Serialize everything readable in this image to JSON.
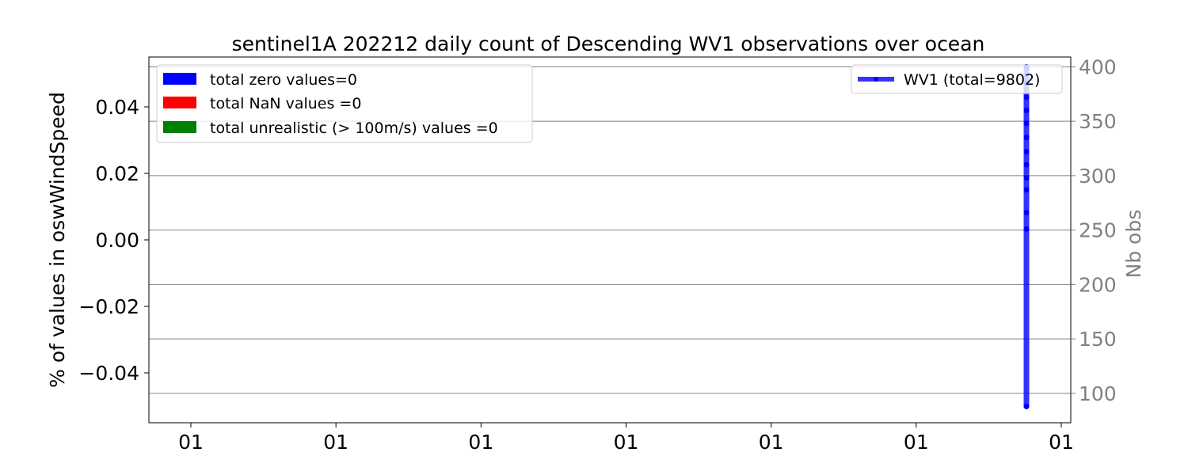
{
  "chart_data": {
    "type": "line",
    "title": "sentinel1A 202212 daily count of Descending WV1 observations over ocean",
    "ylabel_left": "% of values in oswWindSpeed",
    "ylabel_right": "Nb obs",
    "left_axis": {
      "ylim": [
        -0.055,
        0.055
      ],
      "ticks": [
        0.04,
        0.02,
        0.0,
        -0.02,
        -0.04
      ],
      "tick_labels": [
        "0.04",
        "0.02",
        "0.00",
        "−0.02",
        "−0.04"
      ]
    },
    "right_axis": {
      "ylim": [
        73,
        409
      ],
      "ticks": [
        400,
        350,
        300,
        250,
        200,
        150,
        100
      ],
      "tick_labels": [
        "400",
        "350",
        "300",
        "250",
        "200",
        "150",
        "100"
      ],
      "color": "#808080"
    },
    "x_tick_labels": [
      "01",
      "01",
      "01",
      "01",
      "01",
      "01",
      "01"
    ],
    "grid": "right-axis horizontal",
    "legend_left": {
      "placement": "upper-left",
      "entries": [
        {
          "label": "total zero values=0",
          "color": "#0000ff"
        },
        {
          "label": "total NaN values =0",
          "color": "#ff0000"
        },
        {
          "label": "total unrealistic (> 100m/s) values =0",
          "color": "#008000"
        }
      ]
    },
    "legend_right": {
      "placement": "upper-right",
      "entries": [
        {
          "label": "WV1 (total=9802)",
          "color": "#0000ff"
        }
      ]
    },
    "series": [
      {
        "name": "WV1 (total=9802)",
        "color": "#0000ff",
        "values": [
          400,
          385,
          372,
          360,
          348,
          335,
          322,
          310,
          298,
          287,
          266,
          251,
          88
        ]
      }
    ]
  }
}
